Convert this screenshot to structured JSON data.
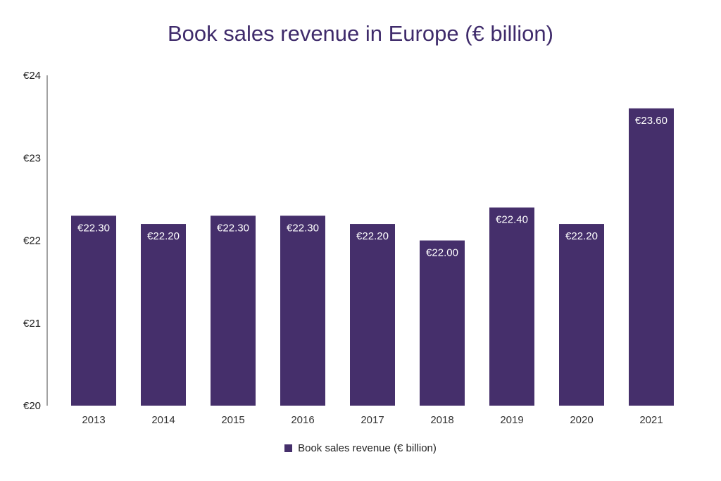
{
  "colors": {
    "bar": "#452f6b",
    "title": "#3f2b6b",
    "axis": "#444444"
  },
  "chart_data": {
    "type": "bar",
    "title": "Book sales revenue in Europe (€ billion)",
    "xlabel": "",
    "ylabel": "",
    "categories": [
      "2013",
      "2014",
      "2015",
      "2016",
      "2017",
      "2018",
      "2019",
      "2020",
      "2021"
    ],
    "series": [
      {
        "name": "Book sales revenue (€ billion)",
        "values": [
          22.3,
          22.2,
          22.3,
          22.3,
          22.2,
          22.0,
          22.4,
          22.2,
          23.6
        ],
        "data_labels": [
          "€22.30",
          "€22.20",
          "€22.30",
          "€22.30",
          "€22.20",
          "€22.00",
          "€22.40",
          "€22.20",
          "€23.60"
        ]
      }
    ],
    "ylim": [
      20,
      24
    ],
    "y_ticks": [
      20,
      21,
      22,
      23,
      24
    ],
    "y_tick_labels": [
      "€20",
      "€21",
      "€22",
      "€23",
      "€24"
    ],
    "grid": false,
    "legend_position": "bottom-center"
  }
}
